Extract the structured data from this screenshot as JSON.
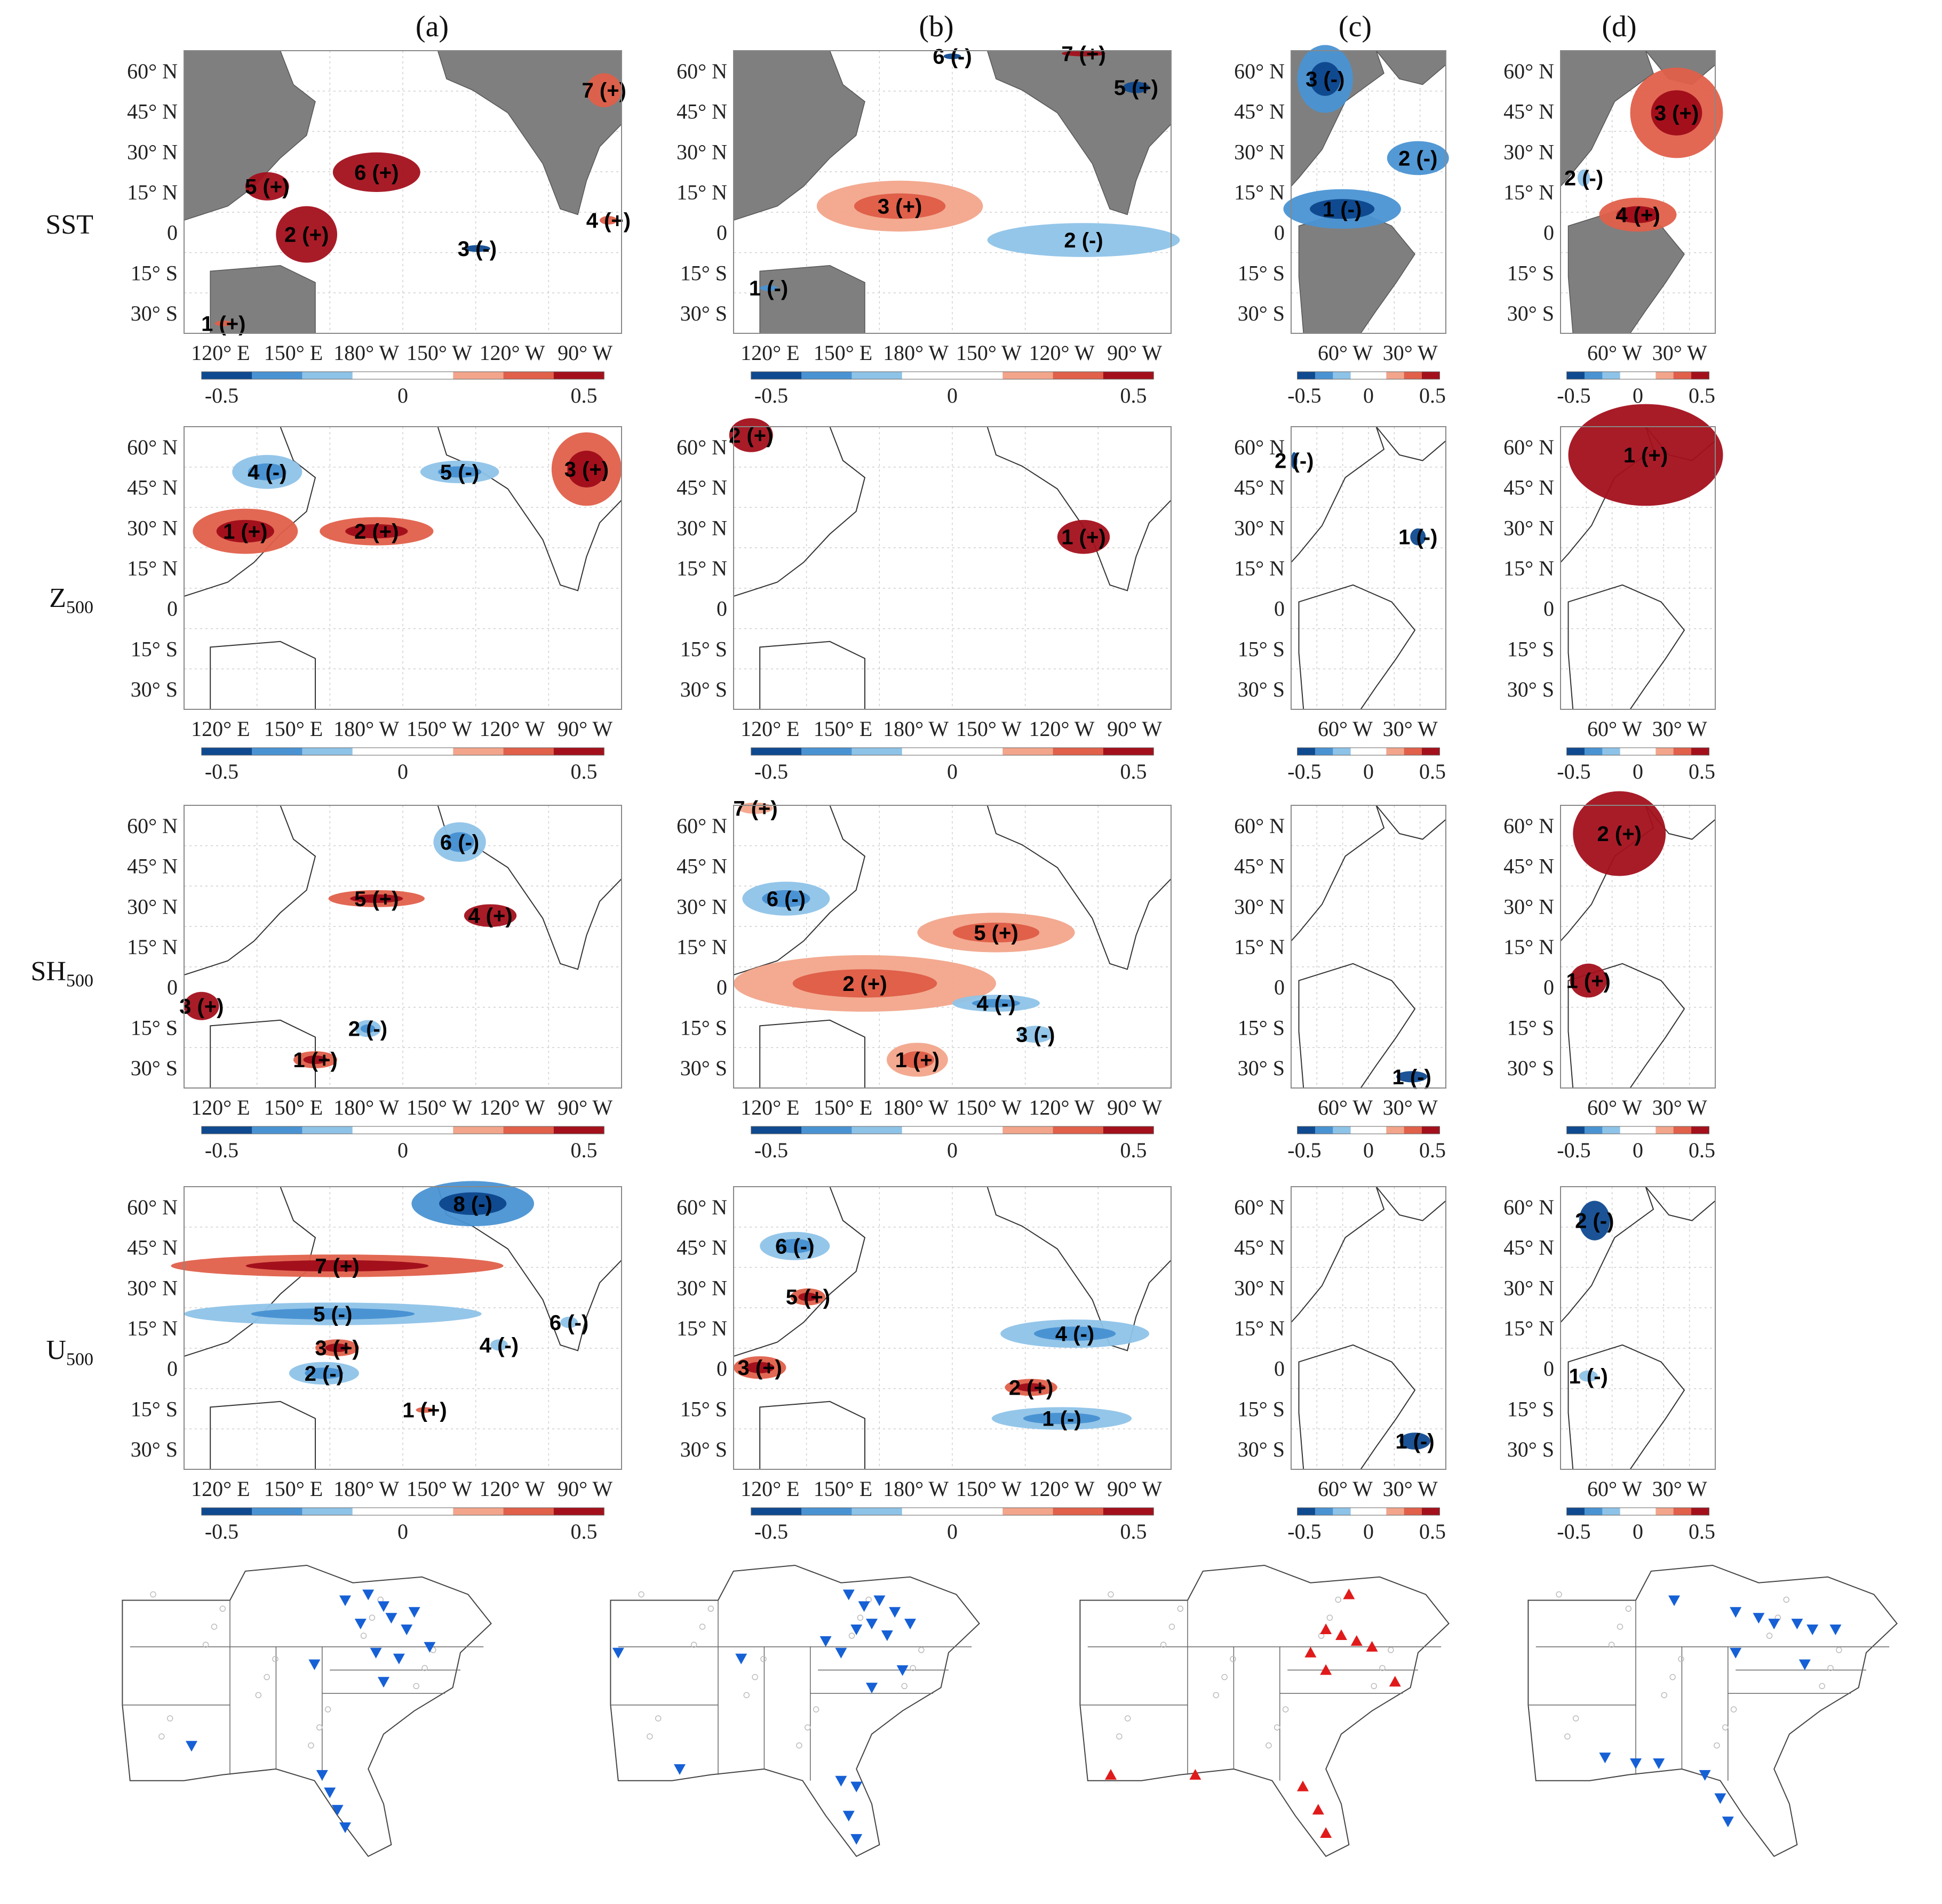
{
  "figure": {
    "panel_labels": [
      "(a)",
      "(b)",
      "(c)",
      "(d)"
    ],
    "rows": [
      {
        "id": "sst",
        "label": "SST",
        "sub": ""
      },
      {
        "id": "z500",
        "label": "Z",
        "sub": "500"
      },
      {
        "id": "sh500",
        "label": "SH",
        "sub": "500"
      },
      {
        "id": "u500",
        "label": "U",
        "sub": "500"
      }
    ],
    "lat_labels": [
      "60° N",
      "45° N",
      "30° N",
      "15° N",
      "0",
      "15° S",
      "30° S"
    ],
    "lon_labels_pacific": [
      "120° E",
      "150° E",
      "180° W",
      "150° W",
      "120° W",
      "90° W"
    ],
    "lon_labels_atlantic": [
      "60° W",
      "30° W"
    ],
    "colorbar_ticks": [
      "-0.5",
      "0",
      "0.5"
    ],
    "colors": {
      "land": "#7f7f7f",
      "pos_light": "#f2a58b",
      "pos_mid": "#e0604a",
      "pos_dark": "#a3101c",
      "neg_light": "#8ec3e8",
      "neg_mid": "#4a93d3",
      "neg_dark": "#0f4a90",
      "station_neg": "#1660d6",
      "station_pos": "#e01a1a"
    }
  },
  "panels": {
    "sst_a": {
      "labels": [
        "1 (+)",
        "2 (+)",
        "3 (-)",
        "4 (+)",
        "5 (+)",
        "6 (+)",
        "7 (+)"
      ]
    },
    "sst_b": {
      "labels": [
        "1 (-)",
        "2 (-)",
        "3 (+)",
        "5 (+)",
        "6 (-)",
        "7 (+)"
      ]
    },
    "sst_c": {
      "labels": [
        "1 (-)",
        "2 (-)",
        "3 (-)"
      ]
    },
    "sst_d": {
      "labels": [
        "2 (-)",
        "3 (+)",
        "4 (+)"
      ]
    },
    "z_a": {
      "labels": [
        "1 (+)",
        "2 (+)",
        "3 (+)",
        "4 (-)",
        "5 (-)"
      ]
    },
    "z_b": {
      "labels": [
        "1 (+)",
        "2 (+)"
      ]
    },
    "z_c": {
      "labels": [
        "1 (-)",
        "2 (-)"
      ]
    },
    "z_d": {
      "labels": [
        "1 (+)"
      ]
    },
    "sh_a": {
      "labels": [
        "1 (+)",
        "2 (-)",
        "3 (+)",
        "4 (+)",
        "5 (+)",
        "6 (-)"
      ]
    },
    "sh_b": {
      "labels": [
        "1 (+)",
        "2 (+)",
        "3 (-)",
        "4 (-)",
        "5 (+)",
        "6 (-)",
        "7 (+)"
      ]
    },
    "sh_c": {
      "labels": [
        "1 (-)"
      ]
    },
    "sh_d": {
      "labels": [
        "1 (+)",
        "2 (+)"
      ]
    },
    "u_a": {
      "labels": [
        "1 (+)",
        "2 (-)",
        "3 (+)",
        "4 (-)",
        "5 (-)",
        "6 (-)",
        "7 (+)",
        "8 (-)"
      ]
    },
    "u_b": {
      "labels": [
        "1 (-)",
        "2 (+)",
        "3 (+)",
        "4 (-)",
        "5 (+)",
        "6 (-)"
      ]
    },
    "u_c": {
      "labels": [
        "1 (-)"
      ]
    },
    "u_d": {
      "labels": [
        "1 (-)",
        "2 (-)"
      ]
    }
  },
  "station_maps": [
    {
      "panel": "(a)",
      "symbol": "triangle-down",
      "sign": "negative"
    },
    {
      "panel": "(b)",
      "symbol": "triangle-down",
      "sign": "negative"
    },
    {
      "panel": "(c)",
      "symbol": "triangle-up",
      "sign": "positive"
    },
    {
      "panel": "(d)",
      "symbol": "triangle-down",
      "sign": "negative"
    }
  ]
}
